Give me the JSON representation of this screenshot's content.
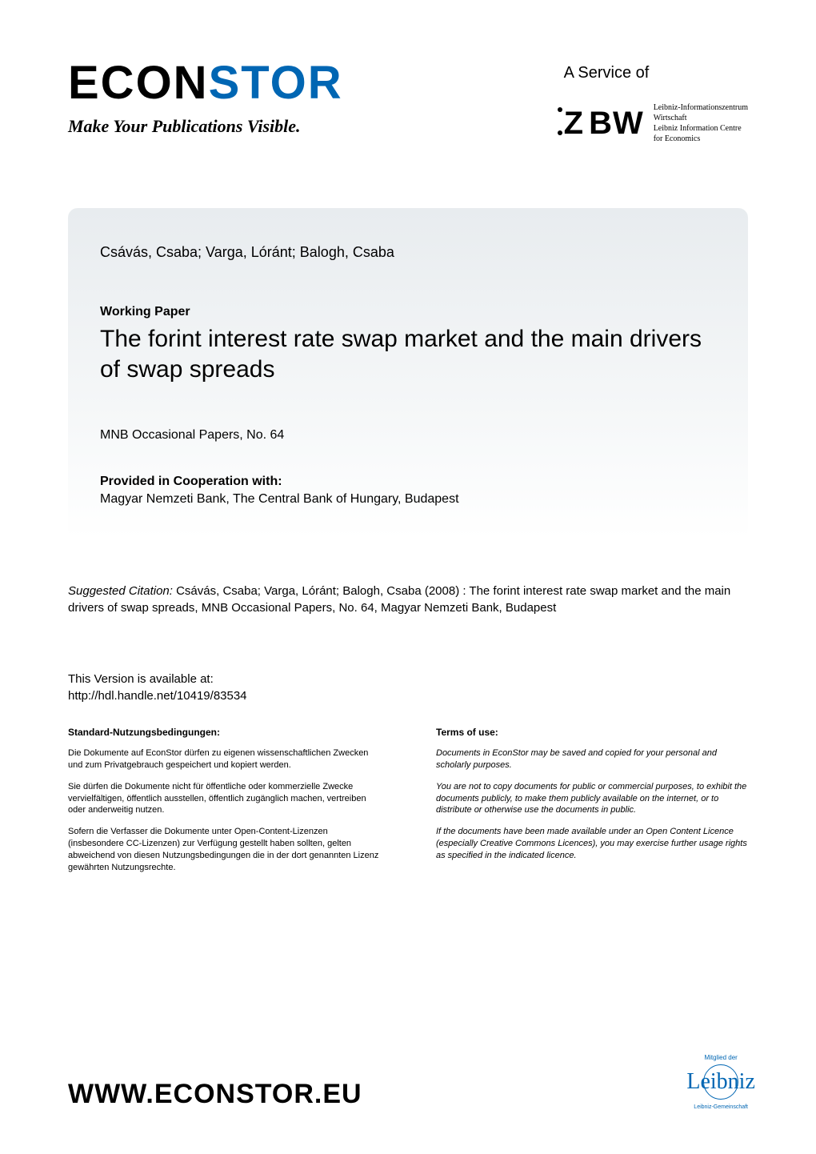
{
  "header": {
    "logo_part1": "ECON",
    "logo_part2": "STOR",
    "tagline": "Make Your Publications Visible.",
    "service_label": "A Service of",
    "zbw_logo": "ZBW",
    "zbw_line1": "Leibniz-Informationszentrum",
    "zbw_line2": "Wirtschaft",
    "zbw_line3": "Leibniz Information Centre",
    "zbw_line4": "for Economics"
  },
  "card": {
    "authors": "Csávás, Csaba; Varga, Lóránt; Balogh, Csaba",
    "working_paper_label": "Working Paper",
    "title": "The forint interest rate swap market and the main drivers of swap spreads",
    "series": "MNB Occasional Papers, No. 64",
    "cooperation_label": "Provided in Cooperation with:",
    "cooperation_body": "Magyar Nemzeti Bank, The Central Bank of Hungary, Budapest"
  },
  "citation": {
    "prefix": "Suggested Citation: ",
    "text": "Csávás, Csaba; Varga, Lóránt; Balogh, Csaba (2008) : The forint interest rate swap market and the main drivers of swap spreads, MNB Occasional Papers, No. 64, Magyar Nemzeti Bank, Budapest"
  },
  "availability": {
    "label": "This Version is available at:",
    "url": "http://hdl.handle.net/10419/83534"
  },
  "terms": {
    "de_heading": "Standard-Nutzungsbedingungen:",
    "de_p1": "Die Dokumente auf EconStor dürfen zu eigenen wissenschaftlichen Zwecken und zum Privatgebrauch gespeichert und kopiert werden.",
    "de_p2": "Sie dürfen die Dokumente nicht für öffentliche oder kommerzielle Zwecke vervielfältigen, öffentlich ausstellen, öffentlich zugänglich machen, vertreiben oder anderweitig nutzen.",
    "de_p3": "Sofern die Verfasser die Dokumente unter Open-Content-Lizenzen (insbesondere CC-Lizenzen) zur Verfügung gestellt haben sollten, gelten abweichend von diesen Nutzungsbedingungen die in der dort genannten Lizenz gewährten Nutzungsrechte.",
    "en_heading": "Terms of use:",
    "en_p1": "Documents in EconStor may be saved and copied for your personal and scholarly purposes.",
    "en_p2": "You are not to copy documents for public or commercial purposes, to exhibit the documents publicly, to make them publicly available on the internet, or to distribute or otherwise use the documents in public.",
    "en_p3": "If the documents have been made available under an Open Content Licence (especially Creative Commons Licences), you may exercise further usage rights as specified in the indicated licence."
  },
  "footer": {
    "url": "WWW.ECONSTOR.EU",
    "leibniz_top": "Mitglied der",
    "leibniz_script": "Leibniz",
    "leibniz_sub": "Leibniz-Gemeinschaft"
  },
  "colors": {
    "accent": "#0066b3",
    "card_bg_top": "#e8ecef",
    "card_bg_bottom": "#ffffff",
    "text": "#000000"
  },
  "typography": {
    "logo_fontsize": 58,
    "tagline_fontsize": 22,
    "title_fontsize": 30,
    "body_fontsize": 16,
    "terms_fontsize": 11,
    "footer_url_fontsize": 34
  }
}
